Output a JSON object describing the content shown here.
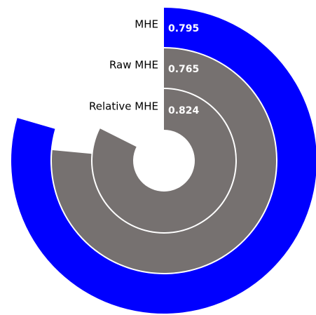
{
  "chart_data": {
    "type": "radialBar",
    "series": [
      {
        "name": "MHE",
        "value": 0.795,
        "color": "#0000ff"
      },
      {
        "name": "Raw MHE",
        "value": 0.765,
        "color": "#767170"
      },
      {
        "name": "Relative MHE",
        "value": 0.824,
        "color": "#767170"
      }
    ],
    "xlim": [
      0,
      1
    ]
  }
}
